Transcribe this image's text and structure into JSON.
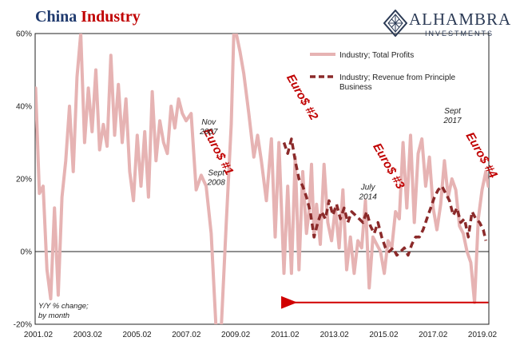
{
  "header": {
    "title_part1": "China",
    "title_part2": "Industry",
    "logo_name": "ALHAMBRA",
    "logo_sub": "INVESTMENTS"
  },
  "chart_data": {
    "type": "line",
    "title": "China Industry",
    "ylim": [
      -20,
      60
    ],
    "y_ticks": [
      60,
      40,
      20,
      0,
      -20
    ],
    "y_tick_labels": [
      "60%",
      "40%",
      "20%",
      "0%",
      "-20%"
    ],
    "x_range": [
      2001.08,
      2019.17
    ],
    "x_tick_labels": [
      "2001.02",
      "2003.02",
      "2005.02",
      "2007.02",
      "2009.02",
      "2011.02",
      "2013.02",
      "2015.02",
      "2017.02",
      "2019.02"
    ],
    "ylabel_note": [
      "Y/Y % change;",
      "by month"
    ],
    "grid": false,
    "legend": "top-right",
    "series": [
      {
        "name": "Industry; Total Profits",
        "color": "#e6b3b3",
        "style": "solid",
        "x": [
          2001.1,
          2001.25,
          2001.4,
          2001.55,
          2001.7,
          2001.85,
          2002.0,
          2002.15,
          2002.3,
          2002.45,
          2002.6,
          2002.75,
          2002.9,
          2003.05,
          2003.2,
          2003.35,
          2003.5,
          2003.65,
          2003.8,
          2003.95,
          2004.1,
          2004.25,
          2004.4,
          2004.55,
          2004.7,
          2004.85,
          2005.0,
          2005.15,
          2005.3,
          2005.45,
          2005.6,
          2005.75,
          2005.9,
          2006.05,
          2006.2,
          2006.35,
          2006.5,
          2006.65,
          2006.8,
          2006.95,
          2007.1,
          2007.3,
          2007.5,
          2007.7,
          2007.9,
          2008.1,
          2008.3,
          2008.5,
          2008.7,
          2008.9,
          2009.0,
          2009.1,
          2009.25,
          2009.4,
          2009.6,
          2009.8,
          2009.95,
          2010.1,
          2010.3,
          2010.5,
          2010.65,
          2010.8,
          2011.0,
          2011.15,
          2011.3,
          2011.45,
          2011.6,
          2011.75,
          2011.9,
          2012.0,
          2012.1,
          2012.2,
          2012.3,
          2012.45,
          2012.6,
          2012.75,
          2012.9,
          2013.05,
          2013.2,
          2013.35,
          2013.5,
          2013.65,
          2013.8,
          2013.95,
          2014.1,
          2014.25,
          2014.4,
          2014.55,
          2014.7,
          2014.85,
          2015.0,
          2015.15,
          2015.3,
          2015.45,
          2015.6,
          2015.75,
          2015.9,
          2016.05,
          2016.2,
          2016.35,
          2016.5,
          2016.65,
          2016.8,
          2016.95,
          2017.1,
          2017.25,
          2017.4,
          2017.55,
          2017.7,
          2017.85,
          2018.0,
          2018.15,
          2018.3,
          2018.45,
          2018.6,
          2018.75,
          2018.9,
          2019.05,
          2019.15
        ],
        "values": [
          45,
          16,
          18,
          -5,
          -13,
          12,
          -12,
          15,
          25,
          40,
          22,
          48,
          60,
          30,
          45,
          33,
          50,
          28,
          35,
          29,
          54,
          32,
          46,
          30,
          42,
          22,
          14,
          32,
          18,
          33,
          15,
          44,
          25,
          36,
          30,
          27,
          40,
          34,
          42,
          38,
          36,
          38,
          17,
          21,
          18,
          5,
          -22,
          -21,
          8,
          35,
          60,
          60,
          55,
          49,
          38,
          26,
          32,
          25,
          14,
          31,
          4,
          30,
          -6,
          18,
          -6,
          26,
          -5,
          22,
          5,
          11,
          24,
          4,
          13,
          2,
          24,
          8,
          3,
          12,
          1,
          17,
          -5,
          4,
          -6,
          3,
          1,
          14,
          -10,
          4,
          2,
          0,
          -6,
          3,
          1,
          11,
          9,
          30,
          12,
          32,
          8,
          27,
          31,
          18,
          26,
          12,
          6,
          13,
          25,
          15,
          20,
          17,
          7,
          5,
          0,
          -3,
          -14,
          9,
          17,
          22,
          18
        ]
      },
      {
        "name": "Industry; Revenue from Principle Business",
        "color": "#8b2a2a",
        "style": "dashed",
        "x": [
          2011.0,
          2011.15,
          2011.3,
          2011.45,
          2011.6,
          2011.75,
          2011.9,
          2012.05,
          2012.2,
          2012.35,
          2012.5,
          2012.65,
          2012.8,
          2012.95,
          2013.1,
          2013.25,
          2013.4,
          2013.55,
          2013.7,
          2013.85,
          2014.0,
          2014.15,
          2014.3,
          2014.45,
          2014.6,
          2014.75,
          2014.9,
          2015.05,
          2015.2,
          2015.35,
          2015.5,
          2015.65,
          2015.8,
          2015.95,
          2016.1,
          2016.25,
          2016.4,
          2016.55,
          2016.7,
          2016.85,
          2017.0,
          2017.15,
          2017.3,
          2017.45,
          2017.6,
          2017.75,
          2017.9,
          2018.05,
          2018.2,
          2018.35,
          2018.5,
          2018.65,
          2018.8,
          2018.95,
          2019.05
        ],
        "values": [
          30,
          27,
          31,
          25,
          20,
          18,
          15,
          11,
          4,
          8,
          11,
          9,
          14,
          10,
          13,
          9,
          12,
          8,
          11,
          10,
          9,
          8,
          11,
          7,
          5,
          8,
          4,
          1,
          0,
          1,
          -1,
          0,
          1,
          -1,
          2,
          4,
          4,
          6,
          9,
          12,
          15,
          17,
          18,
          16,
          14,
          10,
          12,
          8,
          9,
          4,
          11,
          9,
          8,
          6,
          3
        ]
      }
    ],
    "annotations": [
      {
        "text": "Euro$ #1",
        "x": 2008.25,
        "y": 27,
        "rotate": 62
      },
      {
        "text": "Euro$ #2",
        "x": 2011.6,
        "y": 42,
        "rotate": 60
      },
      {
        "text": "Euro$ #3",
        "x": 2015.05,
        "y": 23,
        "rotate": 60
      },
      {
        "text": "Euro$ #4",
        "x": 2018.75,
        "y": 26,
        "rotate": 60
      }
    ],
    "date_notes": [
      {
        "lines": [
          "Nov",
          "2007"
        ],
        "x": 2008.0,
        "y": 35
      },
      {
        "lines": [
          "Sept",
          "2008"
        ],
        "x": 2008.3,
        "y": 21
      },
      {
        "lines": [
          "July",
          "2014"
        ],
        "x": 2014.35,
        "y": 17
      },
      {
        "lines": [
          "Sept",
          "2017"
        ],
        "x": 2017.72,
        "y": 38
      }
    ],
    "arrow": {
      "x_from": 2019.15,
      "x_to": 2011.4,
      "y": -14
    }
  }
}
